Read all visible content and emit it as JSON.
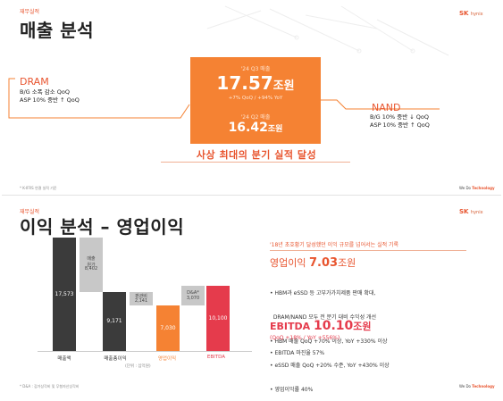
{
  "slide1": {
    "section_tag": "재무실적",
    "title": "매출 분석",
    "logo_main": "SK",
    "logo_sub": "hynix",
    "center_box": {
      "q3_label": "'24 Q3 매출",
      "q3_value": "17.57",
      "q3_unit": "조원",
      "q3_growth": "+7% QoQ / +94% YoY",
      "q2_label": "'24 Q2 매출",
      "q2_value": "16.42",
      "q2_unit": "조원"
    },
    "dram": {
      "title": "DRAM",
      "line1": "B/G 소폭 감소 QoQ",
      "line2": "ASP 10% 중반 ↑ QoQ"
    },
    "nand": {
      "title": "NAND",
      "line1": "B/G 10% 중반 ↓ QoQ",
      "line2": "ASP 10% 중반 ↑ QoQ"
    },
    "headline": "사상 최대의 분기 실적 달성",
    "footnote": "* K-IFRS 연결 실적 기준",
    "footer_brand_a": "We Do ",
    "footer_brand_b": "Technology",
    "colors": {
      "accent": "#f58233",
      "title_accent": "#e8552f"
    }
  },
  "slide2": {
    "section_tag": "재무실적",
    "title": "이익 분석 – 영업이익",
    "logo_main": "SK",
    "logo_sub": "hynix",
    "chart_data": {
      "type": "bar",
      "categories": [
        "매출액",
        "매출총이익",
        "영업이익",
        "EBITDA"
      ],
      "values": [
        17573,
        9171,
        7030,
        10100
      ],
      "value_labels": [
        "17,573",
        "9,171",
        "7,030",
        "10,100"
      ],
      "deductions": [
        {
          "label": "매출\n원가",
          "value": 8402,
          "value_label": "8,402"
        },
        {
          "label": "판관비",
          "value": 2141,
          "value_label": "2,141"
        },
        {
          "label": "D&A*",
          "value": 3070,
          "value_label": "3,070"
        }
      ],
      "unit_note": "(단위 : 십억원)",
      "colors": [
        "#3b3b3b",
        "#3b3b3b",
        "#f58233",
        "#e53b4c"
      ]
    },
    "right": {
      "tag": "'18년 초호황기 달성했던 이익 규모를 넘어서는 실적 기록",
      "op_label": "영업이익 ",
      "op_value": "7.03",
      "op_unit": "조원",
      "bullets": [
        "• HBM과 eSSD 등 고부가가치제품 판매 확대,",
        "  DRAM/NAND 모두 전 분기 대비 수익성 개선",
        "• HBM 매출 QoQ +70% 이상, YoY +330% 이상",
        "• eSSD 매출 QoQ +20% 수준, YoY +430% 이상",
        "• 영업이익률 40%"
      ],
      "ebitda_label": "EBITDA ",
      "ebitda_value": "10.10",
      "ebitda_unit": "조원",
      "ebitda_growth": "(QoQ +18% / YoY +556%)",
      "ebitda_margin": "• EBITDA 마진율 57%"
    },
    "footnote": "* D&A : 감가상각비 및 무형자산상각비",
    "footer_brand_a": "We Do ",
    "footer_brand_b": "Technology"
  }
}
